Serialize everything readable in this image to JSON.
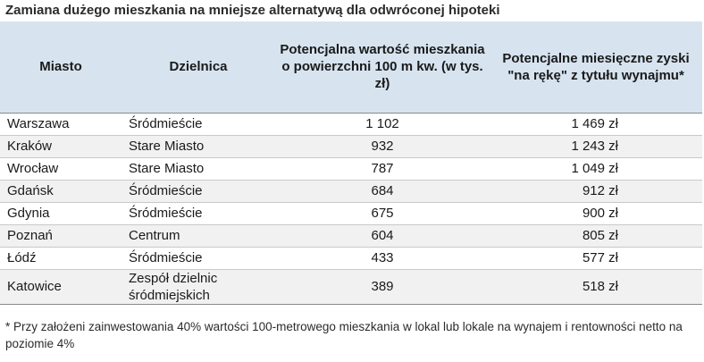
{
  "title": "Zamiana dużego mieszkania na mniejsze alternatywą dla odwróconej hipoteki",
  "table": {
    "headers": {
      "city": "Miasto",
      "district": "Dzielnica",
      "value": "Potencjalna wartość mieszkania o powierzchni 100 m kw. (w tys. zł)",
      "income": "Potencjalne miesięczne zyski \"na rękę\" z tytułu wynajmu*"
    },
    "rows": [
      {
        "city": "Warszawa",
        "district": "Śródmieście",
        "value": "1 102",
        "income": "1 469 zł"
      },
      {
        "city": "Kraków",
        "district": "Stare Miasto",
        "value": "932",
        "income": "1 243 zł"
      },
      {
        "city": "Wrocław",
        "district": "Stare Miasto",
        "value": "787",
        "income": "1 049 zł"
      },
      {
        "city": "Gdańsk",
        "district": "Śródmieście",
        "value": "684",
        "income": "912 zł"
      },
      {
        "city": "Gdynia",
        "district": "Śródmieście",
        "value": "675",
        "income": "900 zł"
      },
      {
        "city": "Poznań",
        "district": "Centrum",
        "value": "604",
        "income": "805 zł"
      },
      {
        "city": "Łódź",
        "district": "Śródmieście",
        "value": "433",
        "income": "577 zł"
      },
      {
        "city": "Katowice",
        "district": "Zespół dzielnic śródmiejskich",
        "value": "389",
        "income": "518 zł"
      }
    ]
  },
  "footnote": "* Przy założeni zainwestowania 40% wartości 100-metrowego mieszkania w lokal lub lokale na wynajem i rentowności netto na poziomie 4%",
  "colors": {
    "header_background": "#d7e4f0",
    "alternate_row": "#f1f1f1"
  }
}
